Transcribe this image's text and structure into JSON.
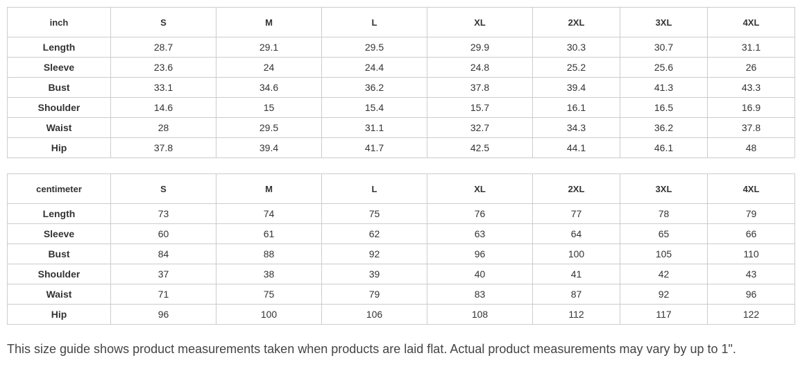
{
  "tables": [
    {
      "header": [
        "inch",
        "S",
        "M",
        "L",
        "XL",
        "2XL",
        "3XL",
        "4XL"
      ],
      "rows": [
        [
          "Length",
          28.7,
          29.1,
          29.5,
          29.9,
          30.3,
          30.7,
          31.1
        ],
        [
          "Sleeve",
          23.6,
          24,
          24.4,
          24.8,
          25.2,
          25.6,
          26
        ],
        [
          "Bust",
          33.1,
          34.6,
          36.2,
          37.8,
          39.4,
          41.3,
          43.3
        ],
        [
          "Shoulder",
          14.6,
          15,
          15.4,
          15.7,
          16.1,
          16.5,
          16.9
        ],
        [
          "Waist",
          28,
          29.5,
          31.1,
          32.7,
          34.3,
          36.2,
          37.8
        ],
        [
          "Hip",
          37.8,
          39.4,
          41.7,
          42.5,
          44.1,
          46.1,
          48
        ]
      ]
    },
    {
      "header": [
        "centimeter",
        "S",
        "M",
        "L",
        "XL",
        "2XL",
        "3XL",
        "4XL"
      ],
      "rows": [
        [
          "Length",
          73,
          74,
          75,
          76,
          77,
          78,
          79
        ],
        [
          "Sleeve",
          60,
          61,
          62,
          63,
          64,
          65,
          66
        ],
        [
          "Bust",
          84,
          88,
          92,
          96,
          100,
          105,
          110
        ],
        [
          "Shoulder",
          37,
          38,
          39,
          40,
          41,
          42,
          43
        ],
        [
          "Waist",
          71,
          75,
          79,
          83,
          87,
          92,
          96
        ],
        [
          "Hip",
          96,
          100,
          106,
          108,
          112,
          117,
          122
        ]
      ]
    }
  ],
  "note": "This size guide shows product measurements taken when products are laid flat. Actual product measurements may vary by up to 1\"."
}
